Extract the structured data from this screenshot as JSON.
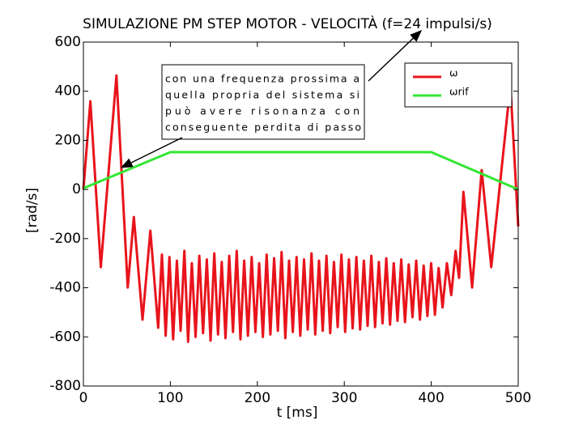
{
  "chart_data": {
    "type": "line",
    "title": "SIMULAZIONE PM STEP MOTOR - VELOCITÀ (f=24 impulsi/s)",
    "x_label": "t [ms]",
    "y_label": "[rad/s]",
    "xlim": [
      0,
      500
    ],
    "xticks": [
      0,
      100,
      200,
      300,
      400,
      500
    ],
    "ylim": [
      -800,
      600
    ],
    "yticks": [
      -800,
      -600,
      -400,
      -200,
      0,
      200,
      400,
      600
    ],
    "legend": "top-right",
    "annotation": [
      "con una frequenza prossima a",
      "quella propria del sistema si",
      "può avere risonanza con",
      "conseguente perdita di passo"
    ],
    "series": [
      {
        "name": "ω",
        "color": "#e8141c",
        "x": [
          0,
          8,
          20,
          38,
          51,
          58,
          68,
          77,
          86,
          90.3,
          94.6,
          98.9,
          103.2,
          107.5,
          111.8,
          116.1,
          120.4,
          124.7,
          129,
          133.3,
          137.6,
          141.9,
          146.2,
          150.5,
          154.8,
          159.1,
          163.4,
          167.7,
          172,
          176.3,
          180.6,
          184.9,
          189.2,
          193.5,
          197.8,
          202.1,
          206.4,
          210.7,
          215,
          219.3,
          223.6,
          227.9,
          232.2,
          236.5,
          240.8,
          245.1,
          249.4,
          253.7,
          258,
          262.3,
          266.6,
          270.9,
          275.2,
          279.5,
          283.8,
          288.1,
          292.4,
          296.7,
          301,
          305.3,
          309.6,
          313.9,
          318.2,
          322.5,
          326.8,
          331.1,
          335.4,
          339.7,
          344,
          348.3,
          352.6,
          356.9,
          361.2,
          365.5,
          369.8,
          374.1,
          378.4,
          382.7,
          387,
          391.3,
          395.6,
          399.9,
          404.2,
          408.5,
          413,
          418,
          423,
          428,
          432,
          437,
          447,
          458,
          469,
          491,
          500
        ],
        "values": [
          0,
          359,
          -316,
          464,
          -399,
          -112,
          -530,
          -168,
          -563,
          -265,
          -595,
          -275,
          -610,
          -290,
          -575,
          -250,
          -620,
          -300,
          -600,
          -270,
          -585,
          -285,
          -615,
          -260,
          -590,
          -295,
          -605,
          -270,
          -580,
          -250,
          -610,
          -290,
          -595,
          -275,
          -580,
          -300,
          -600,
          -265,
          -590,
          -280,
          -575,
          -255,
          -605,
          -290,
          -580,
          -275,
          -595,
          -285,
          -570,
          -260,
          -590,
          -290,
          -575,
          -270,
          -585,
          -295,
          -560,
          -265,
          -580,
          -285,
          -565,
          -275,
          -570,
          -290,
          -555,
          -270,
          -560,
          -295,
          -545,
          -280,
          -550,
          -300,
          -535,
          -285,
          -540,
          -305,
          -520,
          -290,
          -530,
          -310,
          -515,
          -300,
          -510,
          -320,
          -480,
          -300,
          -430,
          -250,
          -360,
          -10,
          -399,
          79,
          -316,
          425,
          -150
        ]
      },
      {
        "name": "ωrif",
        "color": "#33e633",
        "x": [
          0,
          100,
          400,
          500
        ],
        "values": [
          5,
          152,
          152,
          0
        ]
      }
    ]
  }
}
